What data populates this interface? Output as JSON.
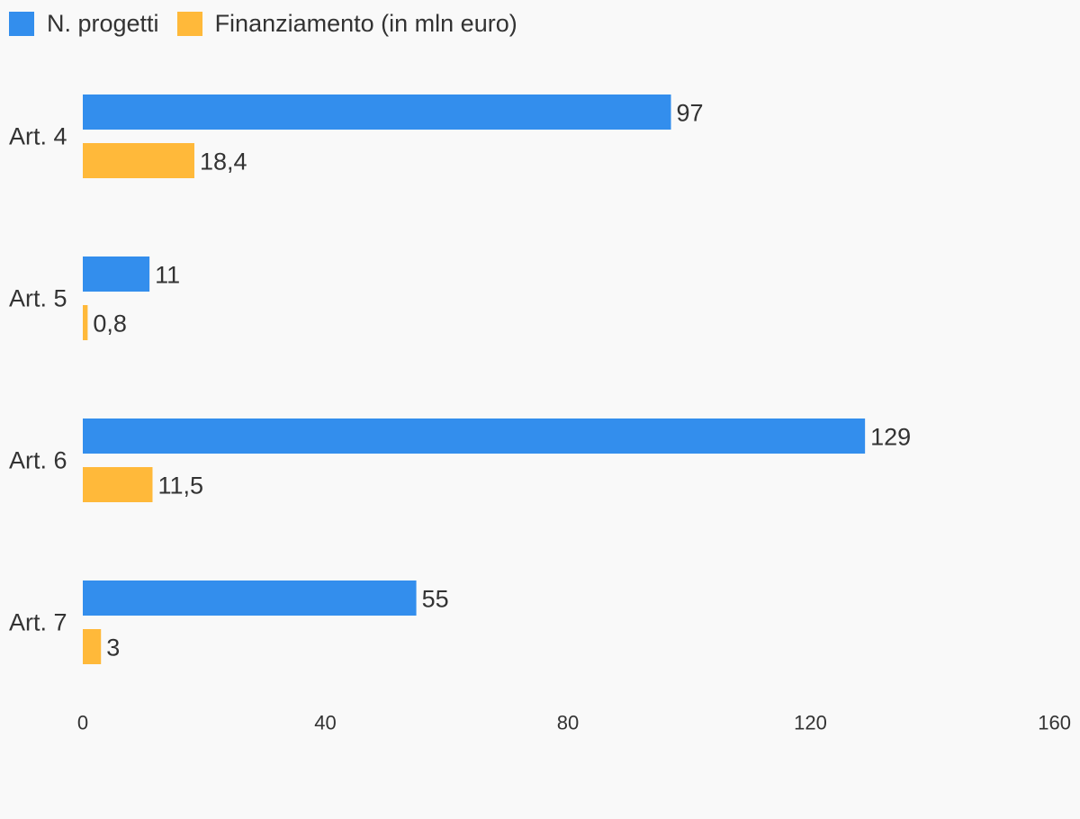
{
  "colors": {
    "background": "#f9f9f9",
    "text": "#333333"
  },
  "chart_data": {
    "type": "bar",
    "orientation": "horizontal",
    "categories": [
      "Art. 4",
      "Art. 5",
      "Art. 6",
      "Art. 7"
    ],
    "series": [
      {
        "name": "N. progetti",
        "color": "#338eed",
        "values": [
          97,
          11,
          129,
          55
        ],
        "labels": [
          "97",
          "11",
          "129",
          "55"
        ]
      },
      {
        "name": "Finanziamento (in mln euro)",
        "color": "#ffb93a",
        "values": [
          18.4,
          0.8,
          11.5,
          3
        ],
        "labels": [
          "18,4",
          "0,8",
          "11,5",
          "3"
        ]
      }
    ],
    "xlim": [
      0,
      160
    ],
    "xticks": [
      "0",
      "40",
      "80",
      "120",
      "160"
    ],
    "grid": false,
    "legend": "top-left"
  }
}
